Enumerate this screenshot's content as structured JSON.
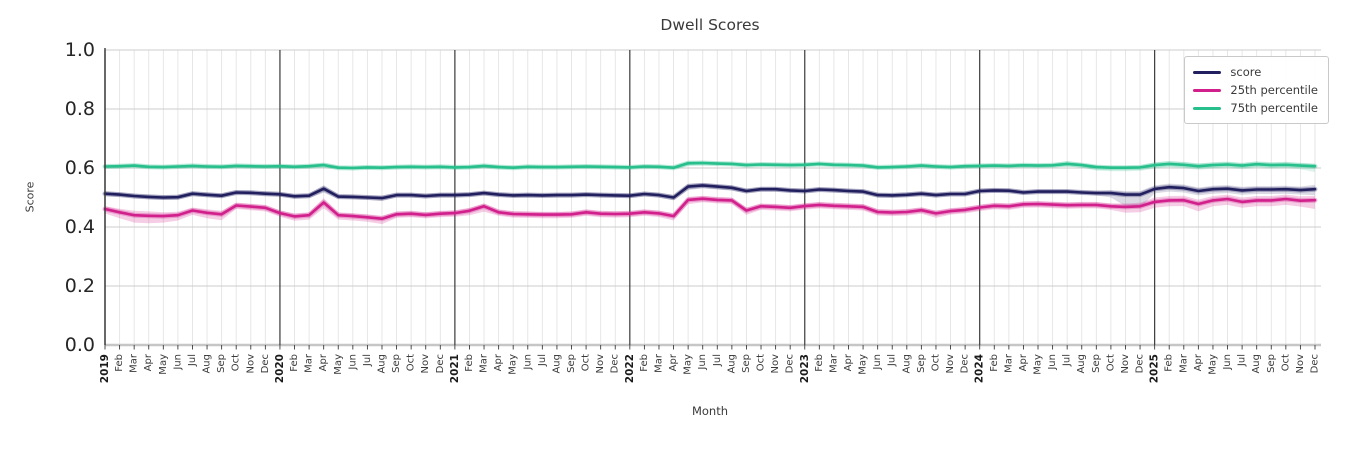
{
  "chart_data": {
    "type": "line",
    "title": "Dwell Scores",
    "xlabel": "Month",
    "ylabel": "Score",
    "ylim": [
      0.0,
      1.0
    ],
    "yticks": [
      "0.0",
      "0.2",
      "0.4",
      "0.6",
      "0.8",
      "1.0"
    ],
    "grid": "on",
    "legend_position": "upper right",
    "x_labels": [
      "2019",
      "Feb",
      "Mar",
      "Apr",
      "May",
      "Jun",
      "Jul",
      "Aug",
      "Sep",
      "Oct",
      "Nov",
      "Dec",
      "2020",
      "Feb",
      "Mar",
      "Apr",
      "May",
      "Jun",
      "Jul",
      "Aug",
      "Sep",
      "Oct",
      "Nov",
      "Dec",
      "2021",
      "Feb",
      "Mar",
      "Apr",
      "May",
      "Jun",
      "Jul",
      "Aug",
      "Sep",
      "Oct",
      "Nov",
      "Dec",
      "2022",
      "Feb",
      "Mar",
      "Apr",
      "May",
      "Jun",
      "Jul",
      "Aug",
      "Sep",
      "Oct",
      "Nov",
      "Dec",
      "2023",
      "Feb",
      "Mar",
      "Apr",
      "May",
      "Jun",
      "Jul",
      "Aug",
      "Sep",
      "Oct",
      "Nov",
      "Dec",
      "2024",
      "Feb",
      "Mar",
      "Apr",
      "May",
      "Jun",
      "Jul",
      "Aug",
      "Sep",
      "Oct",
      "Nov",
      "Dec",
      "2025",
      "Feb",
      "Mar",
      "Apr",
      "May",
      "Jun",
      "Jul",
      "Aug",
      "Sep",
      "Oct",
      "Nov",
      "Dec"
    ],
    "style": {
      "grid_minor": "#e4e4e4",
      "grid_major": "#cccccc",
      "zero_line": "#c6c6c6",
      "year_line": "#3a3a3a",
      "tick_color": "#3a3a3a",
      "text_color": "#3a3a3a"
    },
    "series": [
      {
        "name": "score",
        "color": "#221f5f",
        "values": [
          0.513,
          0.51,
          0.505,
          0.502,
          0.5,
          0.501,
          0.513,
          0.509,
          0.506,
          0.517,
          0.516,
          0.513,
          0.511,
          0.504,
          0.506,
          0.53,
          0.503,
          0.502,
          0.5,
          0.498,
          0.508,
          0.508,
          0.505,
          0.508,
          0.508,
          0.51,
          0.515,
          0.51,
          0.507,
          0.508,
          0.507,
          0.508,
          0.508,
          0.51,
          0.508,
          0.507,
          0.506,
          0.512,
          0.508,
          0.5,
          0.537,
          0.541,
          0.537,
          0.533,
          0.522,
          0.528,
          0.528,
          0.524,
          0.522,
          0.527,
          0.525,
          0.522,
          0.52,
          0.508,
          0.507,
          0.509,
          0.513,
          0.508,
          0.512,
          0.512,
          0.522,
          0.524,
          0.523,
          0.517,
          0.52,
          0.52,
          0.52,
          0.517,
          0.515,
          0.515,
          0.51,
          0.51,
          0.529,
          0.535,
          0.532,
          0.522,
          0.528,
          0.53,
          0.524,
          0.527,
          0.527,
          0.528,
          0.525,
          0.528
        ],
        "ci_lo": [
          0.008,
          0.008,
          0.008,
          0.008,
          0.008,
          0.008,
          0.008,
          0.008,
          0.008,
          0.008,
          0.008,
          0.008,
          0.008,
          0.008,
          0.008,
          0.014,
          0.008,
          0.008,
          0.008,
          0.01,
          0.008,
          0.008,
          0.008,
          0.008,
          0.008,
          0.008,
          0.008,
          0.008,
          0.008,
          0.008,
          0.008,
          0.008,
          0.008,
          0.008,
          0.008,
          0.008,
          0.008,
          0.008,
          0.008,
          0.01,
          0.012,
          0.01,
          0.01,
          0.01,
          0.008,
          0.008,
          0.008,
          0.008,
          0.008,
          0.008,
          0.008,
          0.008,
          0.008,
          0.008,
          0.008,
          0.008,
          0.008,
          0.008,
          0.008,
          0.008,
          0.008,
          0.008,
          0.008,
          0.008,
          0.008,
          0.008,
          0.008,
          0.008,
          0.008,
          0.015,
          0.04,
          0.045,
          0.015,
          0.015,
          0.015,
          0.015,
          0.015,
          0.015,
          0.015,
          0.015,
          0.015,
          0.015,
          0.015,
          0.02
        ],
        "ci_hi": [
          0.008,
          0.008,
          0.008,
          0.008,
          0.008,
          0.008,
          0.008,
          0.008,
          0.008,
          0.008,
          0.008,
          0.008,
          0.008,
          0.008,
          0.008,
          0.012,
          0.008,
          0.008,
          0.008,
          0.008,
          0.008,
          0.008,
          0.008,
          0.008,
          0.008,
          0.008,
          0.008,
          0.008,
          0.008,
          0.008,
          0.008,
          0.008,
          0.008,
          0.008,
          0.008,
          0.008,
          0.008,
          0.008,
          0.008,
          0.008,
          0.01,
          0.008,
          0.008,
          0.008,
          0.008,
          0.008,
          0.008,
          0.008,
          0.008,
          0.008,
          0.008,
          0.008,
          0.008,
          0.008,
          0.008,
          0.008,
          0.008,
          0.008,
          0.008,
          0.008,
          0.008,
          0.008,
          0.008,
          0.008,
          0.008,
          0.008,
          0.008,
          0.008,
          0.008,
          0.01,
          0.012,
          0.012,
          0.012,
          0.012,
          0.012,
          0.012,
          0.012,
          0.012,
          0.012,
          0.012,
          0.012,
          0.012,
          0.012,
          0.015
        ]
      },
      {
        "name": "25th percentile",
        "color": "#d11f8c",
        "values": [
          0.461,
          0.45,
          0.44,
          0.438,
          0.437,
          0.44,
          0.456,
          0.448,
          0.443,
          0.473,
          0.469,
          0.465,
          0.447,
          0.436,
          0.44,
          0.483,
          0.44,
          0.437,
          0.433,
          0.428,
          0.443,
          0.445,
          0.441,
          0.445,
          0.447,
          0.455,
          0.47,
          0.45,
          0.444,
          0.443,
          0.442,
          0.442,
          0.443,
          0.45,
          0.445,
          0.444,
          0.445,
          0.45,
          0.446,
          0.437,
          0.492,
          0.496,
          0.492,
          0.49,
          0.456,
          0.47,
          0.468,
          0.465,
          0.471,
          0.475,
          0.472,
          0.47,
          0.468,
          0.451,
          0.449,
          0.451,
          0.457,
          0.446,
          0.454,
          0.458,
          0.466,
          0.472,
          0.47,
          0.477,
          0.478,
          0.476,
          0.474,
          0.475,
          0.475,
          0.47,
          0.468,
          0.47,
          0.485,
          0.49,
          0.491,
          0.478,
          0.49,
          0.495,
          0.485,
          0.49,
          0.49,
          0.495,
          0.489,
          0.491
        ],
        "ci_lo": [
          0.015,
          0.02,
          0.025,
          0.025,
          0.022,
          0.018,
          0.015,
          0.018,
          0.02,
          0.012,
          0.012,
          0.012,
          0.012,
          0.015,
          0.015,
          0.02,
          0.015,
          0.015,
          0.015,
          0.018,
          0.012,
          0.012,
          0.012,
          0.012,
          0.012,
          0.015,
          0.018,
          0.012,
          0.012,
          0.012,
          0.012,
          0.012,
          0.012,
          0.012,
          0.012,
          0.012,
          0.012,
          0.012,
          0.012,
          0.015,
          0.015,
          0.012,
          0.012,
          0.012,
          0.015,
          0.012,
          0.012,
          0.012,
          0.012,
          0.012,
          0.012,
          0.012,
          0.012,
          0.012,
          0.012,
          0.012,
          0.012,
          0.015,
          0.012,
          0.012,
          0.012,
          0.012,
          0.012,
          0.012,
          0.012,
          0.012,
          0.012,
          0.012,
          0.012,
          0.012,
          0.02,
          0.02,
          0.02,
          0.02,
          0.02,
          0.025,
          0.02,
          0.02,
          0.02,
          0.02,
          0.02,
          0.02,
          0.02,
          0.03
        ],
        "ci_hi": [
          0.01,
          0.012,
          0.015,
          0.015,
          0.013,
          0.012,
          0.01,
          0.012,
          0.012,
          0.01,
          0.01,
          0.01,
          0.01,
          0.01,
          0.01,
          0.015,
          0.01,
          0.01,
          0.01,
          0.01,
          0.01,
          0.01,
          0.01,
          0.01,
          0.01,
          0.01,
          0.01,
          0.01,
          0.01,
          0.01,
          0.01,
          0.01,
          0.01,
          0.01,
          0.01,
          0.01,
          0.01,
          0.01,
          0.01,
          0.01,
          0.01,
          0.01,
          0.01,
          0.01,
          0.01,
          0.01,
          0.01,
          0.01,
          0.01,
          0.01,
          0.01,
          0.01,
          0.01,
          0.01,
          0.01,
          0.01,
          0.01,
          0.01,
          0.01,
          0.01,
          0.01,
          0.01,
          0.01,
          0.01,
          0.01,
          0.01,
          0.01,
          0.01,
          0.01,
          0.01,
          0.012,
          0.012,
          0.015,
          0.015,
          0.015,
          0.015,
          0.015,
          0.015,
          0.015,
          0.015,
          0.015,
          0.015,
          0.015,
          0.015
        ]
      },
      {
        "name": "75th percentile",
        "color": "#27bf8c",
        "values": [
          0.605,
          0.606,
          0.608,
          0.604,
          0.603,
          0.605,
          0.607,
          0.605,
          0.604,
          0.607,
          0.606,
          0.605,
          0.606,
          0.604,
          0.606,
          0.61,
          0.601,
          0.6,
          0.602,
          0.601,
          0.603,
          0.604,
          0.603,
          0.604,
          0.602,
          0.603,
          0.607,
          0.603,
          0.601,
          0.604,
          0.603,
          0.603,
          0.604,
          0.605,
          0.604,
          0.603,
          0.602,
          0.605,
          0.604,
          0.601,
          0.616,
          0.617,
          0.615,
          0.614,
          0.61,
          0.612,
          0.611,
          0.61,
          0.611,
          0.614,
          0.611,
          0.61,
          0.608,
          0.602,
          0.603,
          0.605,
          0.608,
          0.605,
          0.603,
          0.606,
          0.607,
          0.608,
          0.607,
          0.609,
          0.608,
          0.609,
          0.614,
          0.61,
          0.603,
          0.601,
          0.601,
          0.602,
          0.61,
          0.614,
          0.611,
          0.606,
          0.61,
          0.612,
          0.608,
          0.613,
          0.61,
          0.611,
          0.608,
          0.606
        ],
        "ci_lo": [
          0.006,
          0.006,
          0.006,
          0.006,
          0.006,
          0.006,
          0.006,
          0.006,
          0.006,
          0.006,
          0.006,
          0.006,
          0.006,
          0.006,
          0.006,
          0.008,
          0.006,
          0.006,
          0.006,
          0.006,
          0.006,
          0.006,
          0.006,
          0.006,
          0.006,
          0.006,
          0.006,
          0.006,
          0.006,
          0.006,
          0.006,
          0.006,
          0.006,
          0.006,
          0.006,
          0.006,
          0.006,
          0.006,
          0.006,
          0.006,
          0.008,
          0.008,
          0.006,
          0.006,
          0.006,
          0.006,
          0.006,
          0.006,
          0.006,
          0.006,
          0.006,
          0.006,
          0.006,
          0.006,
          0.006,
          0.006,
          0.006,
          0.006,
          0.006,
          0.006,
          0.006,
          0.006,
          0.006,
          0.006,
          0.006,
          0.006,
          0.01,
          0.008,
          0.012,
          0.012,
          0.012,
          0.012,
          0.012,
          0.012,
          0.012,
          0.012,
          0.012,
          0.012,
          0.012,
          0.012,
          0.012,
          0.012,
          0.012,
          0.02
        ],
        "ci_hi": [
          0.006,
          0.006,
          0.006,
          0.006,
          0.006,
          0.006,
          0.006,
          0.006,
          0.006,
          0.006,
          0.006,
          0.006,
          0.006,
          0.006,
          0.006,
          0.008,
          0.006,
          0.006,
          0.006,
          0.006,
          0.006,
          0.006,
          0.006,
          0.006,
          0.006,
          0.006,
          0.006,
          0.006,
          0.006,
          0.006,
          0.006,
          0.006,
          0.006,
          0.006,
          0.006,
          0.006,
          0.006,
          0.006,
          0.006,
          0.006,
          0.008,
          0.006,
          0.006,
          0.006,
          0.006,
          0.006,
          0.006,
          0.006,
          0.006,
          0.006,
          0.006,
          0.006,
          0.006,
          0.006,
          0.006,
          0.006,
          0.006,
          0.006,
          0.006,
          0.006,
          0.006,
          0.006,
          0.006,
          0.006,
          0.006,
          0.006,
          0.01,
          0.006,
          0.006,
          0.006,
          0.006,
          0.006,
          0.01,
          0.01,
          0.01,
          0.01,
          0.01,
          0.01,
          0.01,
          0.01,
          0.01,
          0.01,
          0.01,
          0.008
        ]
      }
    ]
  }
}
